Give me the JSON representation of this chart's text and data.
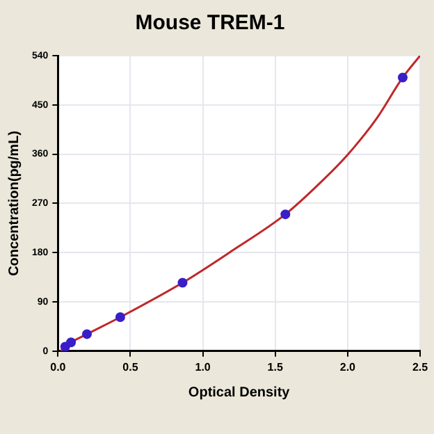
{
  "chart_data": {
    "type": "scatter",
    "title": "Mouse TREM-1",
    "xlabel": "Optical Density",
    "ylabel": "Concentration(pg/mL)",
    "series": [
      {
        "color": "#3a1ec8",
        "marker": "circle",
        "x": [
          0.05,
          0.09,
          0.2,
          0.43,
          0.86,
          1.57,
          2.38
        ],
        "values": [
          8,
          16,
          31,
          62,
          125,
          250,
          500
        ]
      },
      {
        "type": "line",
        "color": "#c0282a",
        "marker": "none",
        "x": [
          0.02,
          0.05,
          0.09,
          0.2,
          0.43,
          0.86,
          1.2,
          1.57,
          1.8,
          2.0,
          2.2,
          2.38,
          2.5
        ],
        "values": [
          0,
          8,
          16,
          31,
          62,
          125,
          183,
          250,
          305,
          359,
          425,
          500,
          540
        ]
      }
    ],
    "xlim": [
      0,
      2.5
    ],
    "xticks": [
      {
        "value": 0,
        "label": "0.0"
      },
      0.5,
      {
        "value": 1,
        "label": "1.0"
      },
      1.5,
      {
        "value": 2,
        "label": "2.0"
      },
      2.5
    ],
    "ylim": [
      0,
      540
    ],
    "yticks": [
      0,
      90,
      180,
      270,
      360,
      450,
      540
    ],
    "grid": true,
    "legend": false,
    "line_style": "solid"
  }
}
